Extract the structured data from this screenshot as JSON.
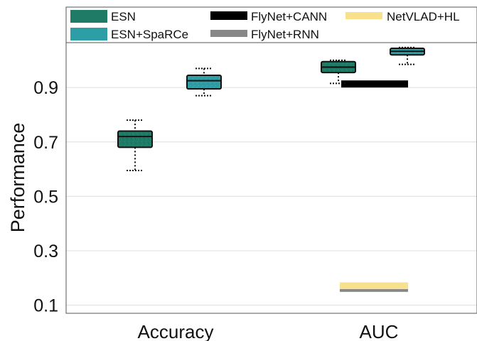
{
  "chart_data": {
    "type": "box",
    "ylabel": "Performance",
    "categories": [
      "Accuracy",
      "AUC"
    ],
    "yticks": [
      0.1,
      0.3,
      0.5,
      0.7,
      0.9
    ],
    "ylim": [
      0.07,
      1.065
    ],
    "grid": true,
    "legend_position": "top",
    "legend": [
      "ESN",
      "ESN+SpaRCe",
      "FlyNet+CANN",
      "FlyNet+RNN",
      "NetVLAD+HL"
    ],
    "colors": {
      "ESN": "#1f7a66",
      "ESN+SpaRCe": "#2e9ea6",
      "FlyNet+CANN": "#000000",
      "FlyNet+RNN": "#888888",
      "NetVLAD+HL": "#f9e08c"
    },
    "boxes": [
      {
        "series": "ESN",
        "category": "Accuracy",
        "min": 0.595,
        "q1": 0.68,
        "median": 0.72,
        "q3": 0.74,
        "max": 0.78
      },
      {
        "series": "ESN+SpaRCe",
        "category": "Accuracy",
        "min": 0.87,
        "q1": 0.895,
        "median": 0.925,
        "q3": 0.945,
        "max": 0.97
      },
      {
        "series": "ESN",
        "category": "AUC",
        "min": 0.915,
        "q1": 0.955,
        "median": 0.975,
        "q3": 0.995,
        "max": 1.0
      },
      {
        "series": "ESN+SpaRCe",
        "category": "AUC",
        "min": 0.985,
        "q1": 1.02,
        "median": 1.033,
        "q3": 1.044,
        "max": 1.047
      }
    ],
    "reference_lines": [
      {
        "series": "FlyNet+CANN",
        "category": "AUC",
        "value": 0.913
      },
      {
        "series": "FlyNet+RNN",
        "category": "AUC",
        "value": 0.154
      },
      {
        "series": "NetVLAD+HL",
        "category": "AUC",
        "value": 0.172
      }
    ]
  }
}
